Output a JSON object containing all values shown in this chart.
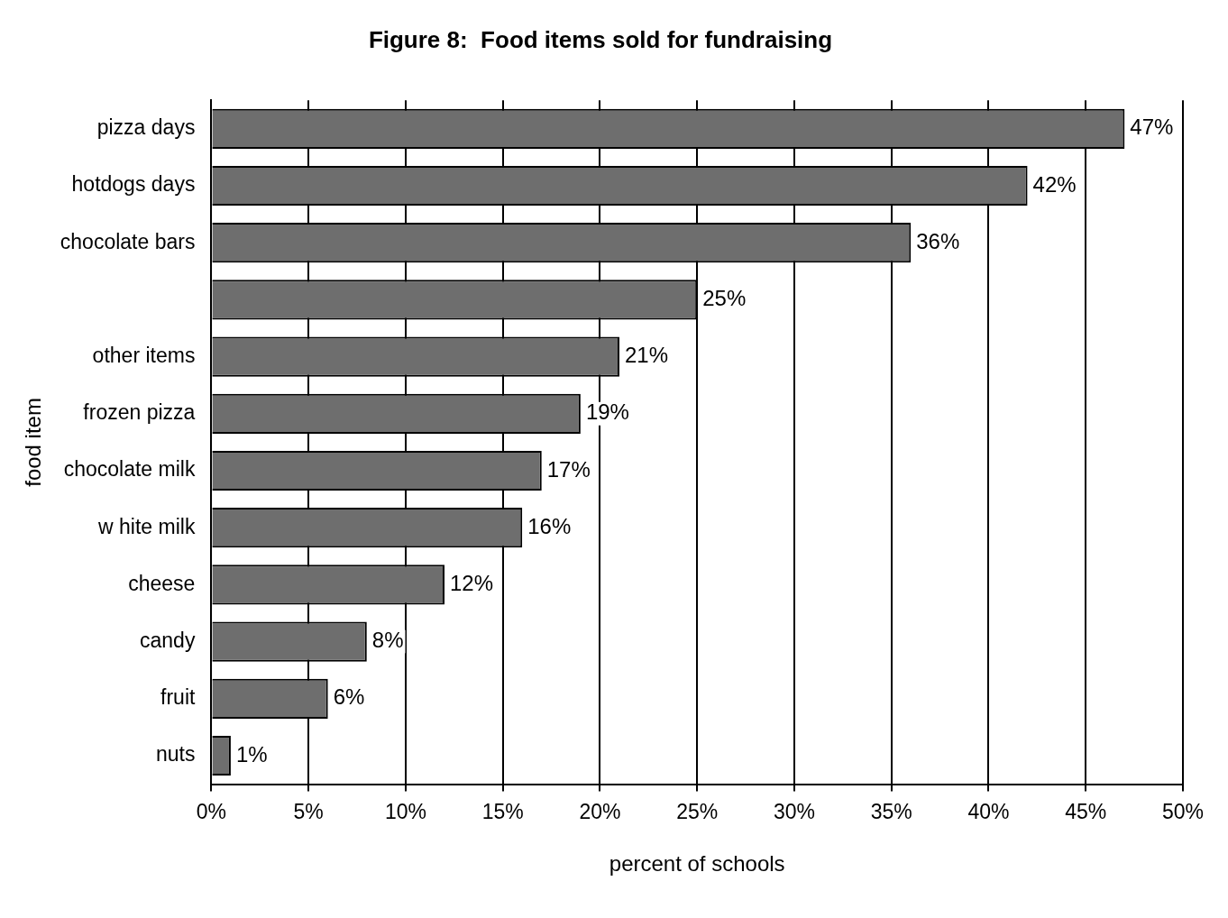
{
  "chart_data": {
    "type": "bar",
    "orientation": "horizontal",
    "title": "Figure 8:  Food items sold for fundraising",
    "xlabel": "percent of schools",
    "ylabel": "food item",
    "categories": [
      "pizza days",
      "hotdogs days",
      "chocolate bars",
      null,
      "other items",
      "frozen pizza",
      "chocolate milk",
      "w hite milk",
      "cheese",
      "candy",
      "fruit",
      "nuts"
    ],
    "values": [
      47,
      42,
      36,
      25,
      21,
      19,
      17,
      16,
      12,
      8,
      6,
      1
    ],
    "value_labels": [
      "47%",
      "42%",
      "36%",
      "25%",
      "21%",
      "19%",
      "17%",
      "16%",
      "12%",
      "8%",
      "6%",
      "1%"
    ],
    "color": "#6e6e6e",
    "xlim": [
      0,
      50
    ],
    "xticks": [
      {
        "value": 0,
        "label": "0%"
      },
      {
        "value": 5,
        "label": "5%"
      },
      {
        "value": 10,
        "label": "10%"
      },
      {
        "value": 15,
        "label": "15%"
      },
      {
        "value": 20,
        "label": "20%"
      },
      {
        "value": 25,
        "label": "25%"
      },
      {
        "value": 30,
        "label": "30%"
      },
      {
        "value": 35,
        "label": "35%"
      },
      {
        "value": 40,
        "label": "40%"
      },
      {
        "value": 45,
        "label": "45%"
      },
      {
        "value": 50,
        "label": "50%"
      }
    ],
    "grid": "x",
    "legend": false
  }
}
